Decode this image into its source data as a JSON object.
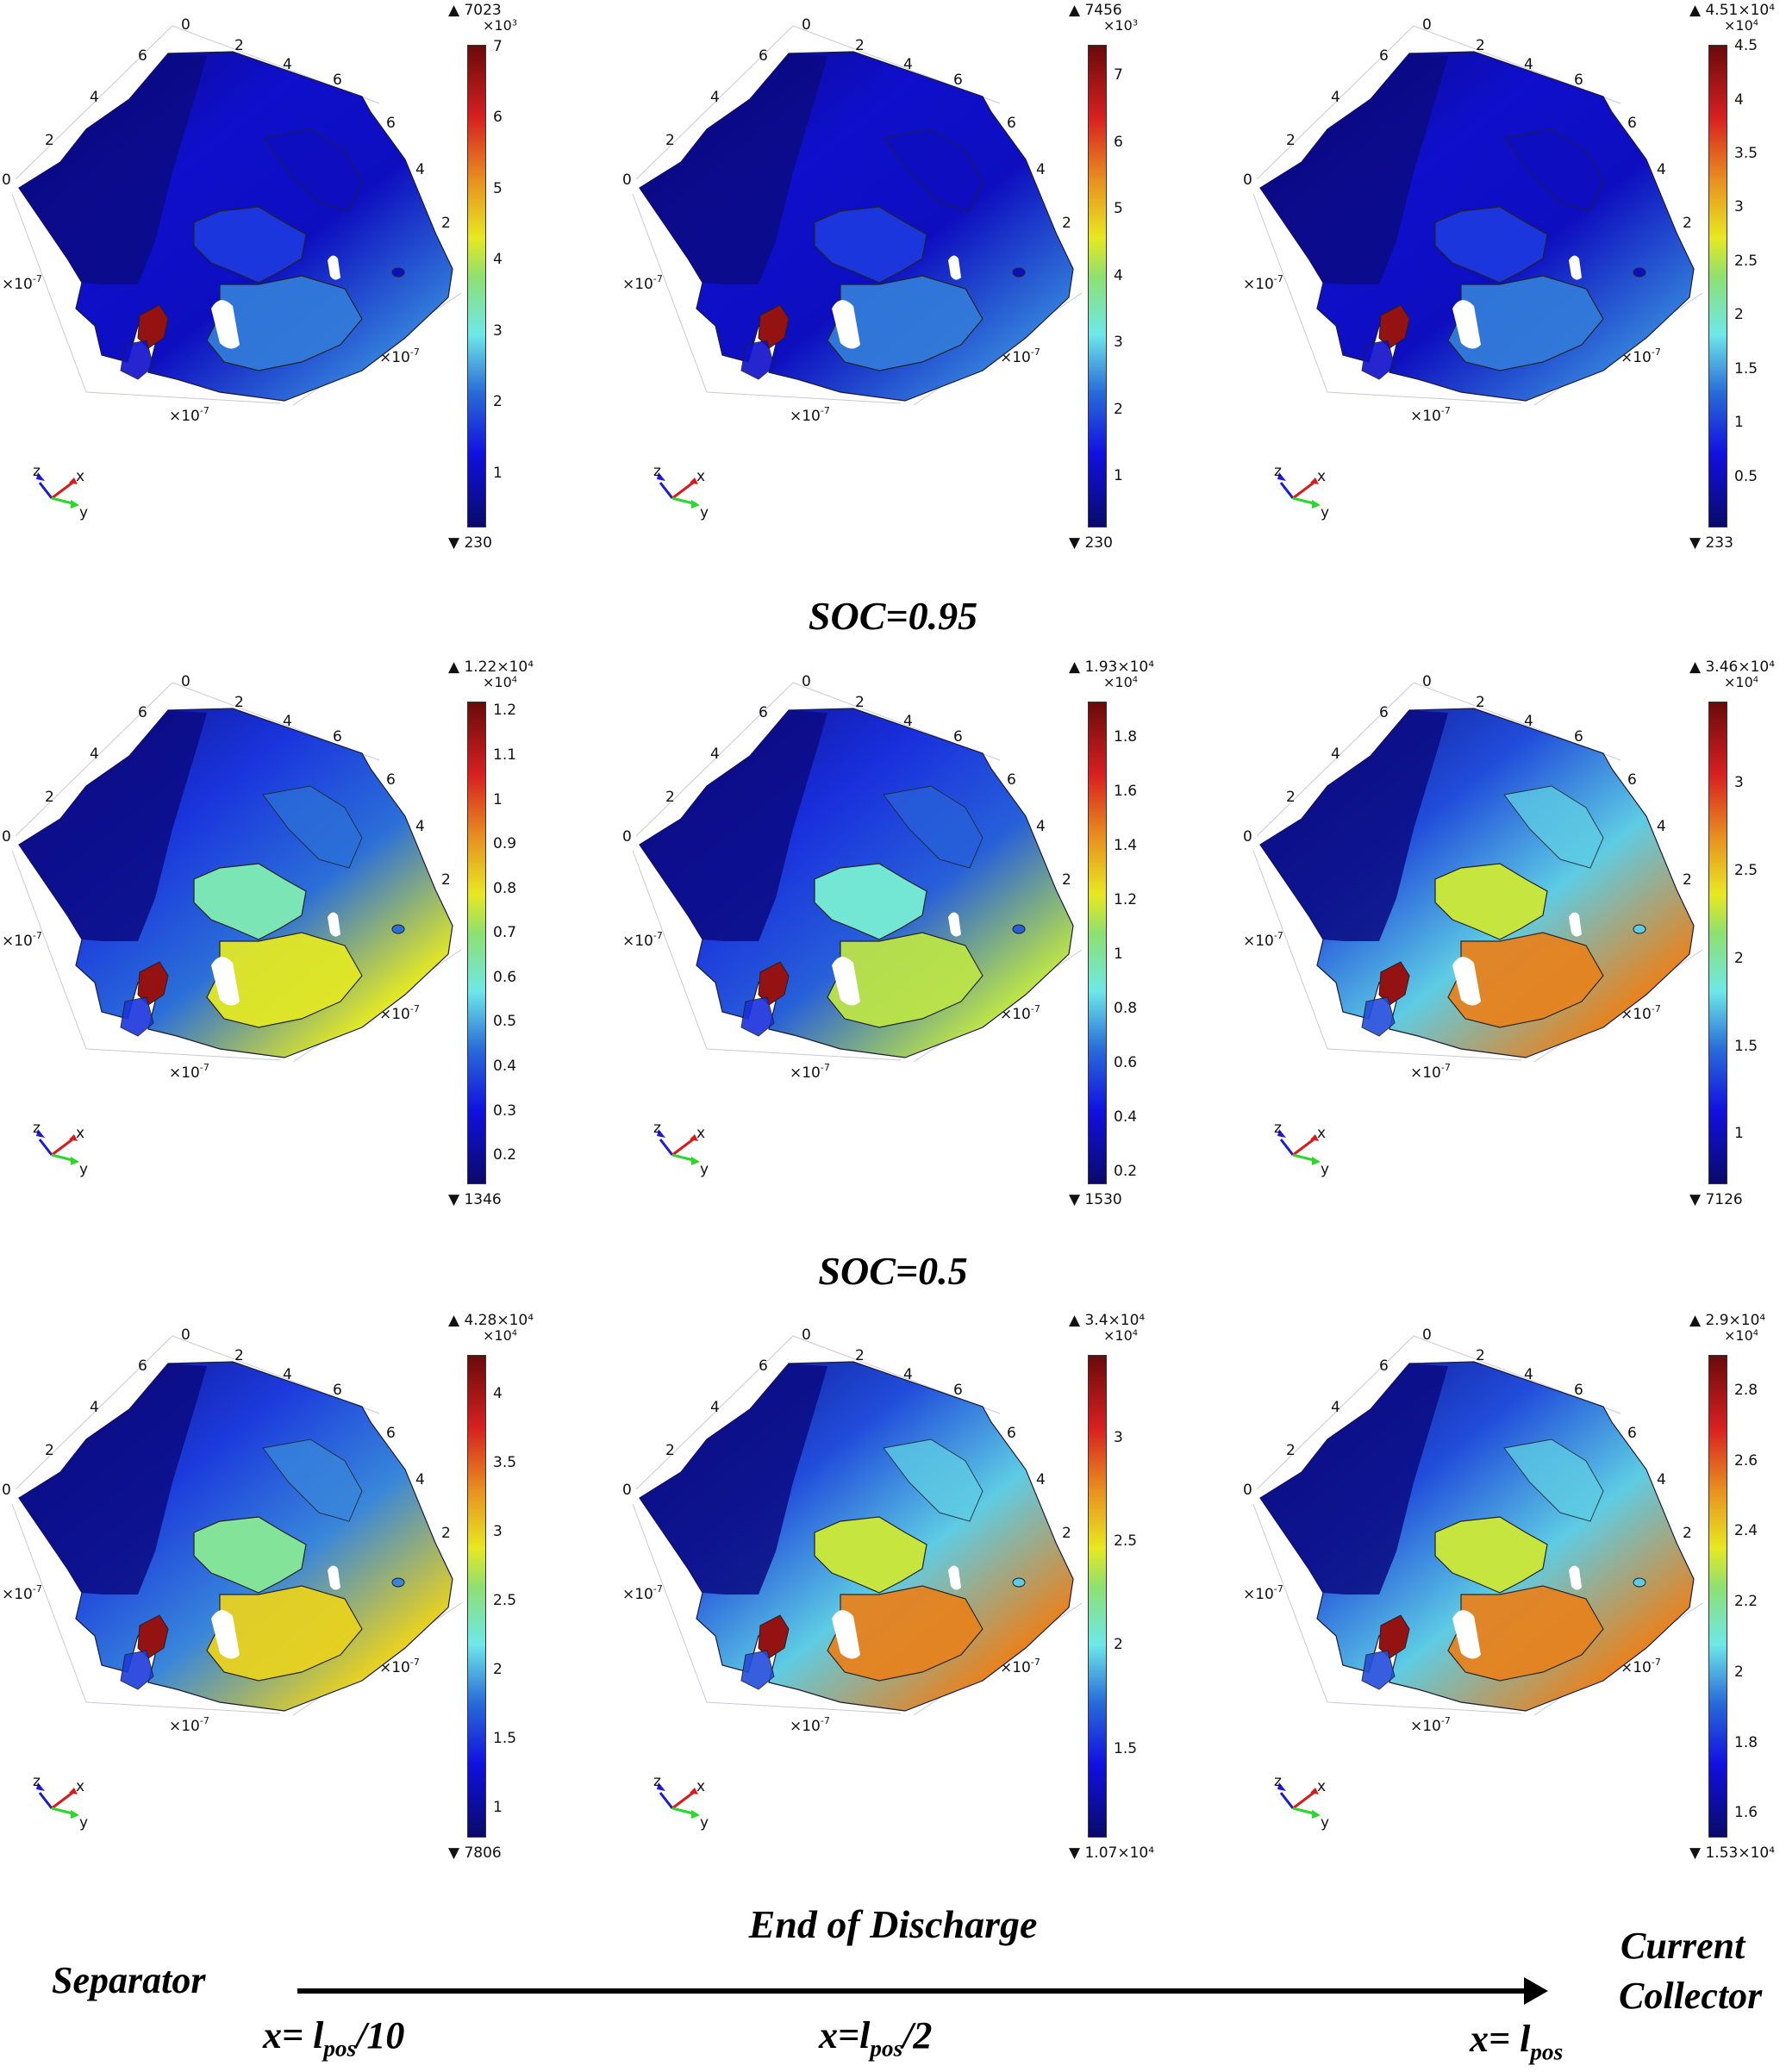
{
  "figure": {
    "row_labels": [
      "SOC=0.95",
      "SOC=0.5",
      "End of Discharge"
    ],
    "column_positions": [
      "x= l_pos/10",
      "x=l_pos/2",
      "x= l_pos"
    ],
    "bottom": {
      "left_label": "Separator",
      "right_label_line1": "Current",
      "right_label_line2": "Collector",
      "pos1_prefix": "x= l",
      "pos1_sub": "pos",
      "pos1_suffix": "/10",
      "pos2_prefix": "x=l",
      "pos2_sub": "pos",
      "pos2_suffix": "/2",
      "pos3_prefix": "x= l",
      "pos3_sub": "pos",
      "pos3_suffix": ""
    },
    "axis": {
      "top_ticks": [
        "0",
        "2",
        "4",
        "6"
      ],
      "left_ticks": [
        "0",
        "2",
        "4",
        "6"
      ],
      "right_ticks": [
        "6",
        "4",
        "2",
        "0"
      ],
      "scale_label": "×10",
      "scale_exp": "-7",
      "triad": {
        "z": "z",
        "x": "x",
        "y": "y"
      }
    },
    "colormap": "jet",
    "colors": {
      "low": "#0a0a6a",
      "mid": "#6ee8e8",
      "high": "#6a0a0a"
    }
  },
  "chart_data": [
    {
      "type": "heatmap",
      "title": "SOC=0.95, x=l_pos/10",
      "row": 0,
      "col": 0,
      "max_label": "7023",
      "min_label": "230",
      "multiplier": "×10",
      "multiplier_exp": "3",
      "ticks": [
        "7",
        "6",
        "5",
        "4",
        "3",
        "2",
        "1"
      ],
      "tick_values": [
        7,
        6,
        5,
        4,
        3,
        2,
        1
      ],
      "range": [
        230,
        7023
      ],
      "hot_fraction": 0.02
    },
    {
      "type": "heatmap",
      "title": "SOC=0.95, x=l_pos/2",
      "row": 0,
      "col": 1,
      "max_label": "7456",
      "min_label": "230",
      "multiplier": "×10",
      "multiplier_exp": "3",
      "ticks": [
        "7",
        "6",
        "5",
        "4",
        "3",
        "2",
        "1"
      ],
      "tick_values": [
        7,
        6,
        5,
        4,
        3,
        2,
        1
      ],
      "range": [
        230,
        7456
      ],
      "hot_fraction": 0.02
    },
    {
      "type": "heatmap",
      "title": "SOC=0.95, x=l_pos",
      "row": 0,
      "col": 2,
      "max_label": "4.51×10⁴",
      "min_label": "233",
      "multiplier": "×10",
      "multiplier_exp": "4",
      "ticks": [
        "4.5",
        "4",
        "3.5",
        "3",
        "2.5",
        "2",
        "1.5",
        "1",
        "0.5"
      ],
      "tick_values": [
        4.5,
        4,
        3.5,
        3,
        2.5,
        2,
        1.5,
        1,
        0.5
      ],
      "range": [
        233,
        45100
      ],
      "hot_fraction": 0.02
    },
    {
      "type": "heatmap",
      "title": "SOC=0.5, x=l_pos/10",
      "row": 1,
      "col": 0,
      "max_label": "1.22×10⁴",
      "min_label": "1346",
      "multiplier": "×10",
      "multiplier_exp": "4",
      "ticks": [
        "1.2",
        "1.1",
        "1",
        "0.9",
        "0.8",
        "0.7",
        "0.6",
        "0.5",
        "0.4",
        "0.3",
        "0.2"
      ],
      "tick_values": [
        1.2,
        1.1,
        1,
        0.9,
        0.8,
        0.7,
        0.6,
        0.5,
        0.4,
        0.3,
        0.2
      ],
      "range": [
        1346,
        12200
      ],
      "hot_fraction": 0.45
    },
    {
      "type": "heatmap",
      "title": "SOC=0.5, x=l_pos/2",
      "row": 1,
      "col": 1,
      "max_label": "1.93×10⁴",
      "min_label": "1530",
      "multiplier": "×10",
      "multiplier_exp": "4",
      "ticks": [
        "1.8",
        "1.6",
        "1.4",
        "1.2",
        "1",
        "0.8",
        "0.6",
        "0.4",
        "0.2"
      ],
      "tick_values": [
        1.8,
        1.6,
        1.4,
        1.2,
        1,
        0.8,
        0.6,
        0.4,
        0.2
      ],
      "range": [
        1530,
        19300
      ],
      "hot_fraction": 0.4
    },
    {
      "type": "heatmap",
      "title": "SOC=0.5, x=l_pos",
      "row": 1,
      "col": 2,
      "max_label": "3.46×10⁴",
      "min_label": "7126",
      "multiplier": "×10",
      "multiplier_exp": "4",
      "ticks": [
        "3",
        "2.5",
        "2",
        "1.5",
        "1"
      ],
      "tick_values": [
        3,
        2.5,
        2,
        1.5,
        1
      ],
      "range": [
        7126,
        34600
      ],
      "hot_fraction": 0.65
    },
    {
      "type": "heatmap",
      "title": "End of Discharge, x=l_pos/10",
      "row": 2,
      "col": 0,
      "max_label": "4.28×10⁴",
      "min_label": "7806",
      "multiplier": "×10",
      "multiplier_exp": "4",
      "ticks": [
        "4",
        "3.5",
        "3",
        "2.5",
        "2",
        "1.5",
        "1"
      ],
      "tick_values": [
        4,
        3.5,
        3,
        2.5,
        2,
        1.5,
        1
      ],
      "range": [
        7806,
        42800
      ],
      "hot_fraction": 0.5
    },
    {
      "type": "heatmap",
      "title": "End of Discharge, x=l_pos/2",
      "row": 2,
      "col": 1,
      "max_label": "3.4×10⁴",
      "min_label": "1.07×10⁴",
      "multiplier": "×10",
      "multiplier_exp": "4",
      "ticks": [
        "3",
        "2.5",
        "2",
        "1.5"
      ],
      "tick_values": [
        3,
        2.5,
        2,
        1.5
      ],
      "range": [
        10700,
        34000
      ],
      "hot_fraction": 0.65
    },
    {
      "type": "heatmap",
      "title": "End of Discharge, x=l_pos",
      "row": 2,
      "col": 2,
      "max_label": "2.9×10⁴",
      "min_label": "1.53×10⁴",
      "multiplier": "×10",
      "multiplier_exp": "4",
      "ticks": [
        "2.8",
        "2.6",
        "2.4",
        "2.2",
        "2",
        "1.8",
        "1.6"
      ],
      "tick_values": [
        2.8,
        2.6,
        2.4,
        2.2,
        2,
        1.8,
        1.6
      ],
      "range": [
        15300,
        29000
      ],
      "hot_fraction": 0.65
    }
  ]
}
